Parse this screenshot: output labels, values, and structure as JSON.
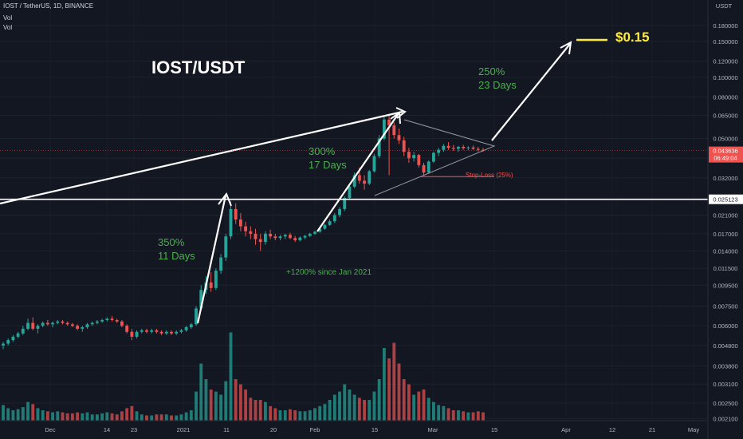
{
  "header": {
    "symbol_line": "IOST / TetherUS, 1D, BINANCE",
    "vol1": "Vol",
    "vol2": "Vol"
  },
  "price_axis": {
    "currency": "USDT",
    "last_price": "0.043636",
    "last_countdown": "06:49:04",
    "resistance_label": "0.025123"
  },
  "annotations": {
    "pair_title": "IOST/USDT",
    "target_label": "$0.15",
    "wave1_pct": "350%",
    "wave1_days": "11 Days",
    "wave2_pct": "300%",
    "wave2_days": "17 Days",
    "wave3_pct": "250%",
    "wave3_days": "23 Days",
    "since_text": "+1200% since Jan 2021",
    "stoploss_text": "Stop-Loss (25%)"
  },
  "colors": {
    "background": "#131722",
    "up": "#26a69a",
    "down": "#ef5350",
    "green_text": "#4caf50",
    "target": "#ffeb3b",
    "last_price_tag": "#ef5350",
    "line": "#ffffff"
  },
  "chart_data": {
    "type": "candlestick",
    "scale": "log",
    "y_ticks": [
      "0.180000",
      "0.150000",
      "0.120000",
      "0.100000",
      "0.080000",
      "0.065000",
      "0.050000",
      "0.040000",
      "0.032000",
      "0.025000",
      "0.021000",
      "0.017000",
      "0.014000",
      "0.011500",
      "0.009500",
      "0.007500",
      "0.006000",
      "0.004800",
      "0.003800",
      "0.003100",
      "0.002500",
      "0.002100"
    ],
    "x_ticks": [
      "Dec",
      "14",
      "23",
      "2021",
      "11",
      "20",
      "Feb",
      "15",
      "Mar",
      "15",
      "Apr",
      "12",
      "21",
      "May"
    ],
    "resistance_level": 0.025123,
    "last_price": 0.043636,
    "target": 0.15,
    "stop_loss": 0.0325,
    "volume_note": "relative volume levels 0–1",
    "candles": [
      [
        0.0048,
        0.005,
        0.0046,
        0.0049,
        0.15
      ],
      [
        0.0049,
        0.0052,
        0.0048,
        0.0051,
        0.12
      ],
      [
        0.0051,
        0.0054,
        0.005,
        0.0053,
        0.1
      ],
      [
        0.0053,
        0.0056,
        0.0052,
        0.0055,
        0.11
      ],
      [
        0.0055,
        0.006,
        0.0054,
        0.0058,
        0.13
      ],
      [
        0.0058,
        0.0065,
        0.0057,
        0.0062,
        0.18
      ],
      [
        0.0062,
        0.0066,
        0.0057,
        0.0058,
        0.16
      ],
      [
        0.0058,
        0.0061,
        0.0055,
        0.006,
        0.12
      ],
      [
        0.006,
        0.0063,
        0.0059,
        0.0062,
        0.1
      ],
      [
        0.0062,
        0.0064,
        0.006,
        0.0061,
        0.09
      ],
      [
        0.0061,
        0.0063,
        0.0059,
        0.0062,
        0.08
      ],
      [
        0.0062,
        0.0064,
        0.0061,
        0.0063,
        0.09
      ],
      [
        0.0063,
        0.0064,
        0.0061,
        0.0062,
        0.08
      ],
      [
        0.0062,
        0.0063,
        0.006,
        0.0061,
        0.07
      ],
      [
        0.0061,
        0.0062,
        0.0059,
        0.006,
        0.07
      ],
      [
        0.006,
        0.0061,
        0.0057,
        0.0058,
        0.08
      ],
      [
        0.0058,
        0.006,
        0.0056,
        0.0059,
        0.07
      ],
      [
        0.0059,
        0.0062,
        0.0058,
        0.0061,
        0.08
      ],
      [
        0.0061,
        0.0063,
        0.006,
        0.0062,
        0.06
      ],
      [
        0.0062,
        0.0064,
        0.0061,
        0.0063,
        0.06
      ],
      [
        0.0063,
        0.0065,
        0.0062,
        0.0064,
        0.07
      ],
      [
        0.0064,
        0.0066,
        0.0063,
        0.0065,
        0.08
      ],
      [
        0.0065,
        0.0067,
        0.0063,
        0.0064,
        0.07
      ],
      [
        0.0064,
        0.0065,
        0.0062,
        0.0063,
        0.06
      ],
      [
        0.0063,
        0.0064,
        0.0059,
        0.006,
        0.09
      ],
      [
        0.006,
        0.0061,
        0.0055,
        0.0056,
        0.12
      ],
      [
        0.0056,
        0.0058,
        0.0051,
        0.0053,
        0.14
      ],
      [
        0.0053,
        0.0057,
        0.0052,
        0.0056,
        0.09
      ],
      [
        0.0056,
        0.0058,
        0.0055,
        0.0057,
        0.06
      ],
      [
        0.0057,
        0.0058,
        0.0055,
        0.0056,
        0.05
      ],
      [
        0.0056,
        0.0058,
        0.0055,
        0.0057,
        0.05
      ],
      [
        0.0057,
        0.0058,
        0.0055,
        0.0056,
        0.06
      ],
      [
        0.0056,
        0.0057,
        0.0054,
        0.0055,
        0.06
      ],
      [
        0.0055,
        0.0057,
        0.0054,
        0.0056,
        0.06
      ],
      [
        0.0056,
        0.0057,
        0.0054,
        0.0055,
        0.05
      ],
      [
        0.0055,
        0.0057,
        0.0054,
        0.0056,
        0.05
      ],
      [
        0.0056,
        0.0058,
        0.0055,
        0.0057,
        0.06
      ],
      [
        0.0057,
        0.006,
        0.0056,
        0.0059,
        0.08
      ],
      [
        0.0059,
        0.0062,
        0.0058,
        0.0061,
        0.1
      ],
      [
        0.0061,
        0.0075,
        0.006,
        0.0073,
        0.28
      ],
      [
        0.0073,
        0.0095,
        0.0071,
        0.009,
        0.55
      ],
      [
        0.009,
        0.0105,
        0.0086,
        0.0098,
        0.4
      ],
      [
        0.0098,
        0.011,
        0.0088,
        0.0092,
        0.3
      ],
      [
        0.0092,
        0.0115,
        0.009,
        0.0112,
        0.28
      ],
      [
        0.0112,
        0.0135,
        0.0108,
        0.013,
        0.25
      ],
      [
        0.013,
        0.017,
        0.0125,
        0.0165,
        0.38
      ],
      [
        0.0165,
        0.0245,
        0.016,
        0.0225,
        0.85
      ],
      [
        0.0225,
        0.024,
        0.019,
        0.02,
        0.4
      ],
      [
        0.02,
        0.0215,
        0.0175,
        0.0185,
        0.35
      ],
      [
        0.0185,
        0.0195,
        0.0165,
        0.0175,
        0.3
      ],
      [
        0.0175,
        0.0185,
        0.016,
        0.017,
        0.22
      ],
      [
        0.017,
        0.018,
        0.015,
        0.016,
        0.2
      ],
      [
        0.016,
        0.017,
        0.014,
        0.0155,
        0.2
      ],
      [
        0.0155,
        0.0175,
        0.015,
        0.017,
        0.18
      ],
      [
        0.017,
        0.0178,
        0.016,
        0.0165,
        0.14
      ],
      [
        0.0165,
        0.017,
        0.0158,
        0.0162,
        0.12
      ],
      [
        0.0162,
        0.0168,
        0.0158,
        0.0165,
        0.1
      ],
      [
        0.0165,
        0.017,
        0.016,
        0.0168,
        0.1
      ],
      [
        0.0168,
        0.0172,
        0.016,
        0.0162,
        0.11
      ],
      [
        0.0162,
        0.0166,
        0.0155,
        0.0158,
        0.1
      ],
      [
        0.0158,
        0.0165,
        0.0156,
        0.0163,
        0.09
      ],
      [
        0.0163,
        0.0168,
        0.016,
        0.0166,
        0.09
      ],
      [
        0.0166,
        0.0172,
        0.0164,
        0.017,
        0.1
      ],
      [
        0.017,
        0.0176,
        0.0168,
        0.0174,
        0.12
      ],
      [
        0.0174,
        0.0182,
        0.0172,
        0.018,
        0.14
      ],
      [
        0.018,
        0.019,
        0.0178,
        0.0188,
        0.16
      ],
      [
        0.0188,
        0.02,
        0.0186,
        0.0196,
        0.2
      ],
      [
        0.0196,
        0.0215,
        0.0192,
        0.021,
        0.25
      ],
      [
        0.021,
        0.023,
        0.0205,
        0.0225,
        0.28
      ],
      [
        0.0225,
        0.026,
        0.022,
        0.0255,
        0.35
      ],
      [
        0.0255,
        0.03,
        0.025,
        0.029,
        0.3
      ],
      [
        0.029,
        0.034,
        0.0285,
        0.033,
        0.25
      ],
      [
        0.033,
        0.036,
        0.03,
        0.031,
        0.22
      ],
      [
        0.031,
        0.033,
        0.028,
        0.03,
        0.2
      ],
      [
        0.03,
        0.035,
        0.0295,
        0.0345,
        0.2
      ],
      [
        0.0345,
        0.042,
        0.034,
        0.041,
        0.28
      ],
      [
        0.041,
        0.052,
        0.04,
        0.05,
        0.4
      ],
      [
        0.05,
        0.064,
        0.049,
        0.062,
        0.7
      ],
      [
        0.062,
        0.066,
        0.033,
        0.058,
        0.6
      ],
      [
        0.058,
        0.06,
        0.05,
        0.052,
        0.75
      ],
      [
        0.052,
        0.056,
        0.047,
        0.049,
        0.55
      ],
      [
        0.049,
        0.051,
        0.041,
        0.043,
        0.4
      ],
      [
        0.043,
        0.045,
        0.038,
        0.04,
        0.35
      ],
      [
        0.04,
        0.043,
        0.0385,
        0.0415,
        0.25
      ],
      [
        0.0415,
        0.042,
        0.036,
        0.037,
        0.28
      ],
      [
        0.037,
        0.038,
        0.033,
        0.034,
        0.3
      ],
      [
        0.034,
        0.039,
        0.0335,
        0.0385,
        0.22
      ],
      [
        0.0385,
        0.043,
        0.038,
        0.0425,
        0.18
      ],
      [
        0.0425,
        0.045,
        0.041,
        0.044,
        0.15
      ],
      [
        0.044,
        0.047,
        0.043,
        0.046,
        0.14
      ],
      [
        0.046,
        0.048,
        0.044,
        0.045,
        0.12
      ],
      [
        0.045,
        0.0465,
        0.0435,
        0.0445,
        0.1
      ],
      [
        0.0445,
        0.046,
        0.043,
        0.0455,
        0.1
      ],
      [
        0.0455,
        0.0465,
        0.044,
        0.0448,
        0.09
      ],
      [
        0.0448,
        0.0458,
        0.0438,
        0.0452,
        0.08
      ],
      [
        0.0452,
        0.0462,
        0.044,
        0.0445,
        0.08
      ],
      [
        0.0445,
        0.0455,
        0.0432,
        0.044,
        0.09
      ],
      [
        0.044,
        0.045,
        0.043,
        0.0436,
        0.08
      ]
    ]
  }
}
